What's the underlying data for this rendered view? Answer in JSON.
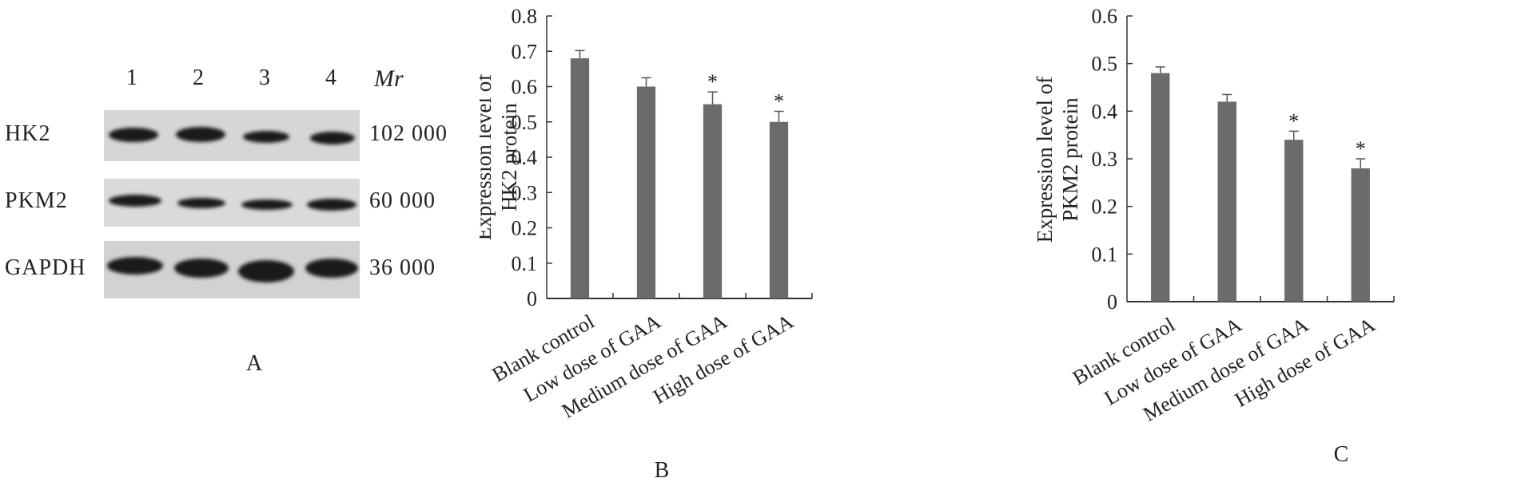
{
  "panel_a": {
    "lanes": [
      "1",
      "2",
      "3",
      "4"
    ],
    "mr_label": "Mr",
    "rows": [
      {
        "protein": "HK2",
        "mw": "102 000"
      },
      {
        "protein": "PKM2",
        "mw": "60 000"
      },
      {
        "protein": "GAPDH",
        "mw": "36 000"
      }
    ],
    "panel_letter": "A"
  },
  "chart_data": [
    {
      "type": "bar",
      "panel_letter": "B",
      "categories": [
        "Blank control",
        "Low dose of GAA",
        "Medium dose of GAA",
        "High dose of GAA"
      ],
      "values": [
        0.68,
        0.6,
        0.55,
        0.5
      ],
      "errors": [
        0.022,
        0.025,
        0.035,
        0.03
      ],
      "annotations": [
        "",
        "",
        "*",
        "*"
      ],
      "ylabel_line1": "Expression level of",
      "ylabel_line2": "HK2 protein",
      "ylim": [
        0,
        0.8
      ],
      "yticks": [
        "0",
        "0.1",
        "0.2",
        "0.3",
        "0.4",
        "0.5",
        "0.6",
        "0.7",
        "0.8"
      ],
      "bar_color": "#6d6a6b"
    },
    {
      "type": "bar",
      "panel_letter": "C",
      "categories": [
        "Blank control",
        "Low dose of GAA",
        "Medium dose of GAA",
        "High dose of GAA"
      ],
      "values": [
        0.48,
        0.42,
        0.34,
        0.28
      ],
      "errors": [
        0.013,
        0.015,
        0.018,
        0.02
      ],
      "annotations": [
        "",
        "",
        "*",
        "*"
      ],
      "ylabel_line1": "Expression level of",
      "ylabel_line2": "PKM2 protein",
      "ylim": [
        0,
        0.6
      ],
      "yticks": [
        "0",
        "0.1",
        "0.2",
        "0.3",
        "0.4",
        "0.5",
        "0.6"
      ],
      "bar_color": "#6d6a6b"
    }
  ]
}
